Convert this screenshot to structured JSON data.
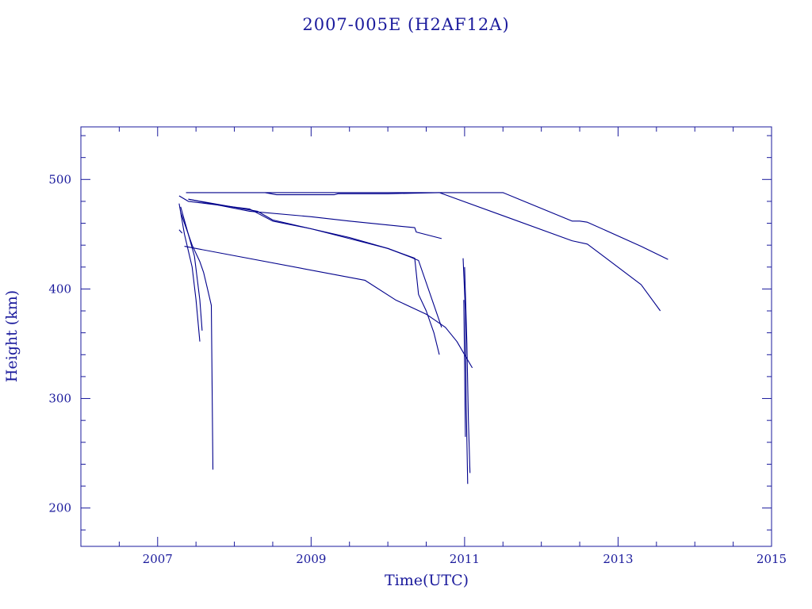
{
  "chart_data": {
    "type": "line",
    "title": "2007-005E (H2AF12A)",
    "xlabel": "Time(UTC)",
    "ylabel": "Height (km)",
    "xlim": [
      2006,
      2015
    ],
    "ylim": [
      165,
      548
    ],
    "x_ticks": [
      {
        "value": 2007,
        "label": "2007"
      },
      {
        "value": 2009,
        "label": "2009"
      },
      {
        "value": 2011,
        "label": "2011"
      },
      {
        "value": 2013,
        "label": "2013"
      },
      {
        "value": 2015,
        "label": "2015"
      }
    ],
    "y_ticks": [
      {
        "value": 200,
        "label": "200"
      },
      {
        "value": 300,
        "label": "300"
      },
      {
        "value": 400,
        "label": "400"
      },
      {
        "value": 500,
        "label": "500"
      }
    ],
    "x_minor_step": 0.5,
    "y_minor_step": 20,
    "grid": false,
    "legend": "none",
    "color": "#00008b",
    "series": [
      {
        "x": [
          2007.37,
          2011.5,
          2012.4,
          2012.5,
          2012.6,
          2013.3,
          2013.65
        ],
        "y": [
          488,
          488,
          462,
          462,
          461,
          439,
          427
        ]
      },
      {
        "x": [
          2008.4,
          2008.55,
          2009.0,
          2009.3,
          2009.35,
          2010.0,
          2010.67,
          2012.4,
          2012.6,
          2013.3,
          2013.55
        ],
        "y": [
          488,
          486,
          486,
          486,
          487,
          487,
          488,
          444,
          441,
          404,
          380
        ]
      },
      {
        "x": [
          2007.28,
          2007.4,
          2008.2,
          2008.5,
          2009.0,
          2009.5,
          2010.0,
          2010.3,
          2010.4,
          2010.7
        ],
        "y": [
          485,
          480,
          473,
          462,
          455,
          447,
          437,
          429,
          426,
          365
        ]
      },
      {
        "x": [
          2007.4,
          2008.2,
          2009.0,
          2009.5,
          2010.2,
          2010.35,
          2010.37,
          2010.7
        ],
        "y": [
          482,
          471,
          466,
          462,
          457,
          456,
          452,
          446
        ]
      },
      {
        "x": [
          2007.4,
          2008.3,
          2008.5,
          2009.0,
          2009.5,
          2010.0,
          2010.35,
          2010.4,
          2010.5,
          2010.6,
          2010.67
        ],
        "y": [
          482,
          471,
          463,
          455,
          446,
          437,
          428,
          395,
          380,
          360,
          340
        ]
      },
      {
        "x": [
          2007.35,
          2009.7,
          2010.1,
          2010.5,
          2010.75,
          2010.9,
          2011.0,
          2011.1
        ],
        "y": [
          439,
          408,
          390,
          377,
          365,
          352,
          340,
          328
        ]
      },
      {
        "x": [
          2007.28,
          2007.35,
          2007.45,
          2007.5,
          2007.55
        ],
        "y": [
          478,
          450,
          420,
          390,
          352
        ]
      },
      {
        "x": [
          2007.3,
          2007.4,
          2007.48,
          2007.55,
          2007.58
        ],
        "y": [
          475,
          450,
          430,
          390,
          362
        ]
      },
      {
        "x": [
          2007.3,
          2007.45,
          2007.55,
          2007.6,
          2007.65,
          2007.7,
          2007.72
        ],
        "y": [
          470,
          440,
          425,
          415,
          400,
          385,
          235
        ]
      },
      {
        "x": [
          2007.28,
          2007.32
        ],
        "y": [
          454,
          451
        ]
      },
      {
        "x": [
          2010.98,
          2011.01,
          2011.02,
          2011.04
        ],
        "y": [
          428,
          380,
          300,
          222
        ]
      },
      {
        "x": [
          2011.0,
          2011.03,
          2011.05,
          2011.07
        ],
        "y": [
          420,
          350,
          280,
          232
        ]
      },
      {
        "x": [
          2010.99,
          2011.0,
          2011.01
        ],
        "y": [
          390,
          330,
          265
        ]
      }
    ]
  }
}
